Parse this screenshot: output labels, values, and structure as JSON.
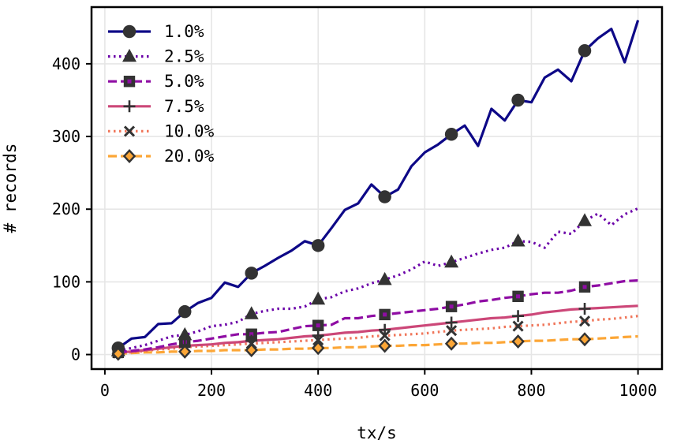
{
  "chart_data": {
    "type": "line",
    "title": "",
    "xlabel": "tx/s",
    "ylabel": "# records",
    "xlim": [
      -25,
      1045
    ],
    "ylim": [
      -20,
      478
    ],
    "xticks": [
      0,
      200,
      400,
      600,
      800,
      1000
    ],
    "yticks": [
      0,
      100,
      200,
      300,
      400
    ],
    "grid": true,
    "legend": "top-left",
    "marker_x": [
      25,
      150,
      275,
      400,
      525,
      650,
      775,
      900
    ],
    "series": [
      {
        "name": "1.0%",
        "color": "#0d0887",
        "dash": "solid",
        "marker": "circle",
        "x": [
          25,
          50,
          75,
          100,
          125,
          150,
          175,
          200,
          225,
          250,
          275,
          300,
          325,
          350,
          375,
          400,
          425,
          450,
          475,
          500,
          525,
          550,
          575,
          600,
          625,
          650,
          675,
          700,
          725,
          750,
          775,
          800,
          825,
          850,
          875,
          900,
          925,
          950,
          975,
          1000
        ],
        "y": [
          9,
          22,
          24,
          42,
          43,
          59,
          71,
          78,
          99,
          93,
          112,
          122,
          133,
          143,
          156,
          150,
          174,
          199,
          208,
          234,
          217,
          227,
          259,
          278,
          289,
          303,
          315,
          287,
          338,
          322,
          350,
          347,
          381,
          392,
          376,
          418,
          435,
          448,
          402,
          460
        ]
      },
      {
        "name": "2.5%",
        "color": "#6a00a8",
        "dash": "dotted",
        "marker": "triangle",
        "x": [
          25,
          50,
          75,
          100,
          125,
          150,
          175,
          200,
          225,
          250,
          275,
          300,
          325,
          350,
          375,
          400,
          425,
          450,
          475,
          500,
          525,
          550,
          575,
          600,
          625,
          650,
          675,
          700,
          725,
          750,
          775,
          800,
          825,
          850,
          875,
          900,
          925,
          950,
          975,
          1000
        ],
        "y": [
          5,
          9,
          13,
          19,
          25,
          27,
          32,
          39,
          41,
          45,
          56,
          60,
          63,
          63,
          66,
          76,
          79,
          87,
          91,
          98,
          103,
          109,
          117,
          128,
          122,
          127,
          133,
          139,
          144,
          147,
          156,
          155,
          147,
          169,
          166,
          184,
          194,
          178,
          193,
          201
        ]
      },
      {
        "name": "5.0%",
        "color": "#8f0da4",
        "dash": "dashed",
        "marker": "square",
        "x": [
          25,
          50,
          75,
          100,
          125,
          150,
          175,
          200,
          225,
          250,
          275,
          300,
          325,
          350,
          375,
          400,
          425,
          450,
          475,
          500,
          525,
          550,
          575,
          600,
          625,
          650,
          675,
          700,
          725,
          750,
          775,
          800,
          825,
          850,
          875,
          900,
          925,
          950,
          975,
          1000
        ],
        "y": [
          3,
          5,
          7,
          10,
          14,
          17,
          19,
          22,
          25,
          28,
          28,
          30,
          31,
          35,
          39,
          40,
          41,
          50,
          50,
          53,
          55,
          57,
          59,
          61,
          63,
          66,
          69,
          73,
          75,
          78,
          80,
          83,
          85,
          85,
          88,
          93,
          95,
          98,
          101,
          102
        ]
      },
      {
        "name": "7.5%",
        "color": "#cc4778",
        "dash": "solid",
        "marker": "plus",
        "x": [
          25,
          50,
          75,
          100,
          125,
          150,
          175,
          200,
          225,
          250,
          275,
          300,
          325,
          350,
          375,
          400,
          425,
          450,
          475,
          500,
          525,
          550,
          575,
          600,
          625,
          650,
          675,
          700,
          725,
          750,
          775,
          800,
          825,
          850,
          875,
          900,
          925,
          950,
          975,
          1000
        ],
        "y": [
          3,
          4,
          6,
          8,
          10,
          12,
          13,
          14,
          16,
          17,
          19,
          20,
          21,
          23,
          25,
          26,
          28,
          30,
          31,
          33,
          34,
          36,
          38,
          40,
          42,
          44,
          46,
          48,
          50,
          51,
          53,
          55,
          58,
          60,
          62,
          63,
          64,
          65,
          66,
          67
        ]
      },
      {
        "name": "10.0%",
        "color": "#f0765a",
        "dash": "dotted",
        "marker": "x",
        "x": [
          25,
          50,
          75,
          100,
          125,
          150,
          175,
          200,
          225,
          250,
          275,
          300,
          325,
          350,
          375,
          400,
          425,
          450,
          475,
          500,
          525,
          550,
          575,
          600,
          625,
          650,
          675,
          700,
          725,
          750,
          775,
          800,
          825,
          850,
          875,
          900,
          925,
          950,
          975,
          1000
        ],
        "y": [
          2,
          3,
          5,
          7,
          8,
          10,
          11,
          12,
          13,
          14,
          15,
          16,
          17,
          18,
          19,
          20,
          21,
          22,
          23,
          25,
          26,
          27,
          28,
          29,
          31,
          33,
          34,
          35,
          36,
          38,
          39,
          40,
          41,
          43,
          45,
          46,
          48,
          49,
          51,
          53
        ]
      },
      {
        "name": "20.0%",
        "color": "#fca636",
        "dash": "dashed",
        "marker": "diamond",
        "x": [
          25,
          50,
          75,
          100,
          125,
          150,
          175,
          200,
          225,
          250,
          275,
          300,
          325,
          350,
          375,
          400,
          425,
          450,
          475,
          500,
          525,
          550,
          575,
          600,
          625,
          650,
          675,
          700,
          725,
          750,
          775,
          800,
          825,
          850,
          875,
          900,
          925,
          950,
          975,
          1000
        ],
        "y": [
          1,
          2,
          3,
          3,
          4,
          4,
          5,
          5,
          6,
          6,
          6,
          7,
          7,
          8,
          8,
          9,
          9,
          10,
          10,
          11,
          12,
          12,
          13,
          13,
          14,
          15,
          15,
          16,
          16,
          17,
          18,
          19,
          19,
          20,
          21,
          21,
          22,
          23,
          24,
          25
        ]
      }
    ]
  }
}
